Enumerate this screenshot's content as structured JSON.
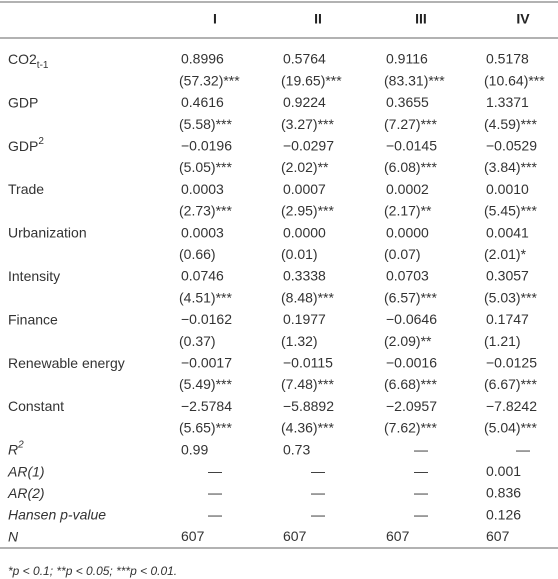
{
  "table": {
    "columns": [
      "I",
      "II",
      "III",
      "IV"
    ],
    "rows": [
      {
        "label": "CO2",
        "sub": "t-1",
        "values": [
          "0.8996",
          "0.5764",
          "0.9116",
          "0.5178"
        ],
        "stats": [
          "(57.32)***",
          "(19.65)***",
          "(83.31)***",
          "(10.64)***"
        ]
      },
      {
        "label": "GDP",
        "values": [
          "0.4616",
          "0.9224",
          "0.3655",
          "1.3371"
        ],
        "stats": [
          "(5.58)***",
          "(3.27)***",
          "(7.27)***",
          "(4.59)***"
        ]
      },
      {
        "label": "GDP",
        "sup": "2",
        "values": [
          "−0.0196",
          "−0.0297",
          "−0.0145",
          "−0.0529"
        ],
        "stats": [
          "(5.05)***",
          "(2.02)**",
          "(6.08)***",
          "(3.84)***"
        ]
      },
      {
        "label": "Trade",
        "values": [
          "0.0003",
          "0.0007",
          "0.0002",
          "0.0010"
        ],
        "stats": [
          "(2.73)***",
          "(2.95)***",
          "(2.17)**",
          "(5.45)***"
        ]
      },
      {
        "label": "Urbanization",
        "values": [
          "0.0003",
          "0.0000",
          "0.0000",
          "0.0041"
        ],
        "stats": [
          "(0.66)",
          "(0.01)",
          "(0.07)",
          "(2.01)*"
        ]
      },
      {
        "label": "Intensity",
        "values": [
          "0.0746",
          "0.3338",
          "0.0703",
          "0.3057"
        ],
        "stats": [
          "(4.51)***",
          "(8.48)***",
          "(6.57)***",
          "(5.03)***"
        ]
      },
      {
        "label": "Finance",
        "values": [
          "−0.0162",
          "0.1977",
          "−0.0646",
          "0.1747"
        ],
        "stats": [
          "(0.37)",
          "(1.32)",
          "(2.09)**",
          "(1.21)"
        ]
      },
      {
        "label": "Renewable energy",
        "values": [
          "−0.0017",
          "−0.0115",
          "−0.0016",
          "−0.0125"
        ],
        "stats": [
          "(5.49)***",
          "(7.48)***",
          "(6.68)***",
          "(6.67)***"
        ]
      },
      {
        "label": "Constant",
        "values": [
          "−2.5784",
          "−5.8892",
          "−2.0957",
          "−7.8242"
        ],
        "stats": [
          "(5.65)***",
          "(4.36)***",
          "(7.62)***",
          "(5.04)***"
        ]
      },
      {
        "label": "R",
        "sup": "2",
        "italic": true,
        "values": [
          "0.99",
          "0.73",
          "—",
          "—"
        ]
      },
      {
        "label": "AR(1)",
        "italic": true,
        "values": [
          "—",
          "—",
          "—",
          "0.001"
        ]
      },
      {
        "label": "AR(2)",
        "italic": true,
        "values": [
          "—",
          "—",
          "—",
          "0.836"
        ]
      },
      {
        "label": "Hansen p-value",
        "italic": true,
        "values": [
          "—",
          "—",
          "—",
          "0.126"
        ]
      },
      {
        "label": "N",
        "italic": true,
        "values": [
          "607",
          "607",
          "607",
          "607"
        ]
      }
    ],
    "footnote": "*p < 0.1; **p < 0.05; ***p < 0.01."
  }
}
